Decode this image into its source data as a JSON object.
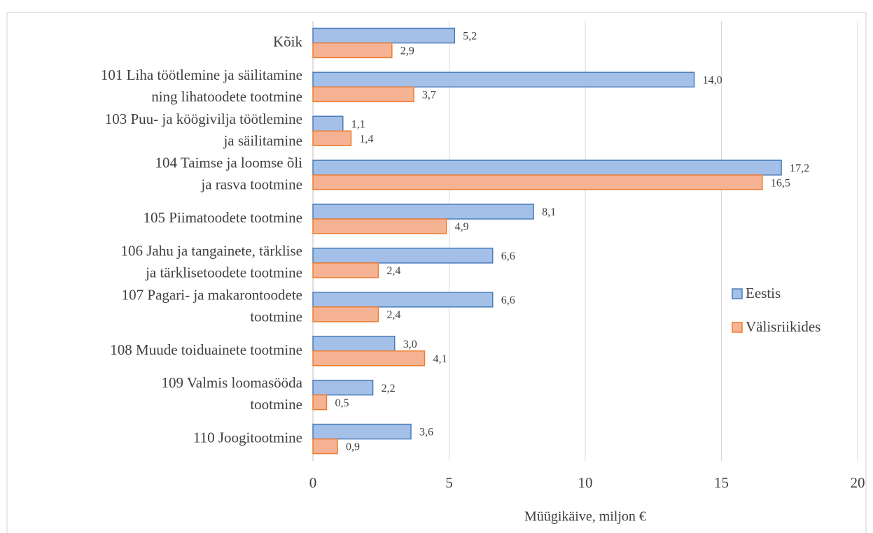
{
  "chart_data": {
    "type": "barh",
    "categories": [
      [
        "Kõik"
      ],
      [
        "101 Liha töötlemine ja säilitamine",
        "ning lihatoodete tootmine"
      ],
      [
        "103 Puu- ja köögivilja töötlemine",
        "ja säilitamine"
      ],
      [
        "104 Taimse ja loomse õli",
        "ja rasva tootmine"
      ],
      [
        "105 Piimatoodete tootmine"
      ],
      [
        "106 Jahu ja tangainete, tärklise",
        "ja tärklisetoodete tootmine"
      ],
      [
        "107 Pagari- ja makarontoodete",
        "tootmine"
      ],
      [
        "108 Muude toiduainete tootmine"
      ],
      [
        "109 Valmis loomasööda",
        "tootmine"
      ],
      [
        "110 Joogitootmine"
      ]
    ],
    "series": [
      {
        "name": "Eestis",
        "color": "#a4c0e8",
        "edgecolor": "#4a7ebb",
        "values": [
          5.2,
          14.0,
          1.1,
          17.2,
          8.1,
          6.6,
          6.6,
          3.0,
          2.2,
          3.6
        ],
        "value_labels": [
          "5,2",
          "14,0",
          "1,1",
          "17,2",
          "8,1",
          "6,6",
          "6,6",
          "3,0",
          "2,2",
          "3,6"
        ]
      },
      {
        "name": "Välisriikides",
        "color": "#f6b394",
        "edgecolor": "#ed7d31",
        "values": [
          2.9,
          3.7,
          1.4,
          16.5,
          4.9,
          2.4,
          2.4,
          4.1,
          0.5,
          0.9
        ],
        "value_labels": [
          "2,9",
          "3,7",
          "1,4",
          "16,5",
          "4,9",
          "2,4",
          "2,4",
          "4,1",
          "0,5",
          "0,9"
        ]
      }
    ],
    "xlim": [
      0,
      20
    ],
    "xticks": [
      0,
      5,
      10,
      15,
      20
    ],
    "grid": true,
    "legend": "right",
    "xlabel": "Müügikäive, miljon €"
  }
}
